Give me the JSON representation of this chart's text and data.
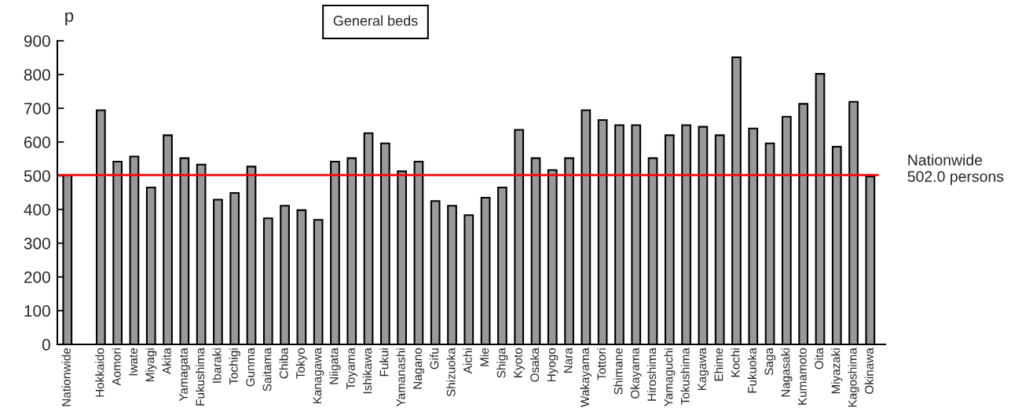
{
  "chart_data": {
    "type": "bar",
    "title": "General beds",
    "ylabel": "p",
    "categories": [
      "Nationwide",
      null,
      "Hokkaido",
      "Aomori",
      "Iwate",
      "Miyagi",
      "Akita",
      "Yamagata",
      "Fukushima",
      "Ibaraki",
      "Tochigi",
      "Gunma",
      "Saitama",
      "Chiba",
      "Tokyo",
      "Kanagawa",
      "Niigata",
      "Toyama",
      "Ishikawa",
      "Fukui",
      "Yamanashi",
      "Nagano",
      "Gifu",
      "Shizuoka",
      "Aichi",
      "Mie",
      "Shiga",
      "Kyoto",
      "Osaka",
      "Hyogo",
      "Nara",
      "Wakayama",
      "Tottori",
      "Shimane",
      "Okayama",
      "Hiroshima",
      "Yamaguchi",
      "Tokushima",
      "Kagawa",
      "Ehime",
      "Kochi",
      "Fukuoka",
      "Saga",
      "Nagasaki",
      "Kumamoto",
      "Oita",
      "Miyazaki",
      "Kagoshima",
      "Okinawa"
    ],
    "values": [
      502,
      null,
      694,
      542,
      557,
      465,
      620,
      552,
      533,
      429,
      449,
      527,
      374,
      411,
      398,
      369,
      542,
      552,
      626,
      596,
      513,
      542,
      425,
      411,
      383,
      435,
      465,
      636,
      552,
      517,
      552,
      694,
      665,
      650,
      650,
      552,
      620,
      650,
      645,
      620,
      851,
      640,
      596,
      675,
      713,
      802,
      586,
      719,
      498
    ],
    "color": "#999999",
    "ylim": [
      0,
      900
    ],
    "yticks": [
      0,
      100,
      200,
      300,
      400,
      500,
      600,
      700,
      800,
      900
    ],
    "ref_lines": [
      {
        "axis": "y",
        "value": 502,
        "label": "Nationwide\n502.0 persons",
        "color": "#ff0000"
      }
    ],
    "grid": false,
    "legend": false
  }
}
